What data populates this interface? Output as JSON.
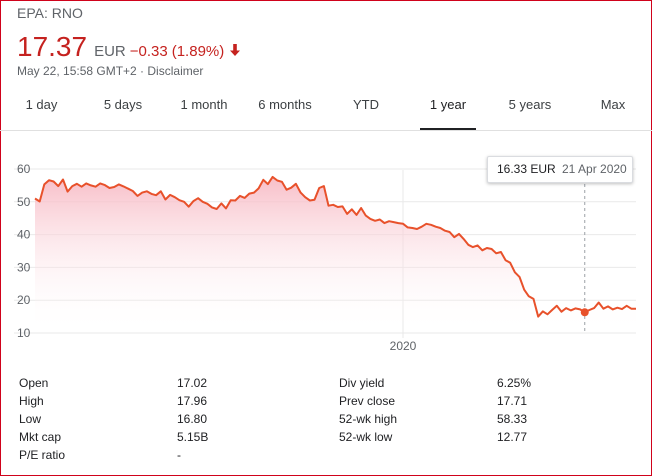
{
  "header": {
    "ticker": "EPA: RNO",
    "price": "17.37",
    "currency": "EUR",
    "change": "−0.33",
    "change_pct": "(1.89%)",
    "direction_icon": "arrow-down-icon",
    "timestamp": "May 22, 15:58 GMT+2 · ",
    "disclaimer": "Disclaimer"
  },
  "tabs": [
    "1 day",
    "5 days",
    "1 month",
    "6 months",
    "YTD",
    "1 year",
    "5 years",
    "Max"
  ],
  "active_tab": "1 year",
  "tooltip": {
    "value": "16.33 EUR",
    "date": "21 Apr 2020"
  },
  "chart_data": {
    "type": "area",
    "y_ticks": [
      "60",
      "50",
      "40",
      "30",
      "20",
      "10"
    ],
    "ylim": [
      10,
      60
    ],
    "x_tick_label": "2020",
    "grid": true,
    "colors": {
      "line": "#e8512b",
      "fill_top": "#f7b7c2",
      "fill_bottom": "#ffffff",
      "grid": "#e9e9e9"
    },
    "series": [
      {
        "values": [
          51.0,
          50.1,
          55.3,
          56.6,
          56.2,
          54.8,
          56.8,
          53.1,
          54.8,
          55.5,
          54.6,
          55.6,
          55.0,
          54.6,
          55.6,
          55.1,
          54.2,
          54.5,
          55.3,
          54.7,
          54.0,
          53.3,
          51.8,
          52.8,
          53.2,
          52.4,
          52.0,
          53.2,
          50.7,
          52.1,
          51.4,
          50.5,
          50.0,
          48.5,
          50.2,
          51.1,
          50.0,
          49.4,
          48.3,
          47.8,
          49.5,
          48.0,
          50.5,
          50.4,
          51.8,
          51.2,
          52.5,
          52.8,
          54.1,
          56.7,
          55.4,
          57.6,
          56.5,
          56.1,
          53.7,
          54.3,
          55.5,
          52.8,
          51.4,
          50.4,
          50.6,
          54.2,
          54.8,
          48.8,
          49.1,
          48.4,
          48.6,
          46.3,
          47.7,
          46.0,
          48.1,
          45.8,
          44.8,
          44.2,
          44.6,
          43.5,
          44.1,
          43.8,
          43.5,
          43.3,
          42.2,
          42.0,
          41.7,
          42.4,
          43.3,
          43.0,
          42.4,
          42.0,
          41.2,
          40.8,
          39.2,
          40.2,
          38.7,
          36.9,
          36.2,
          36.7,
          35.2,
          35.9,
          35.6,
          34.3,
          34.7,
          32.2,
          31.4,
          28.5,
          27.1,
          23.2,
          21.2,
          20.4,
          15.0,
          16.6,
          15.7,
          17.0,
          18.3,
          16.5,
          17.6,
          16.9,
          17.5,
          17.2,
          16.3,
          17.0,
          17.6,
          19.3,
          17.4,
          18.1,
          17.2,
          17.7,
          17.3,
          18.3,
          17.4,
          17.4
        ]
      }
    ],
    "highlight_point": {
      "x": "21 Apr 2020",
      "y": 16.33
    }
  },
  "stats": {
    "left": [
      {
        "label": "Open",
        "value": "17.02"
      },
      {
        "label": "High",
        "value": "17.96"
      },
      {
        "label": "Low",
        "value": "16.80"
      },
      {
        "label": "Mkt cap",
        "value": "5.15B"
      },
      {
        "label": "P/E ratio",
        "value": "-"
      }
    ],
    "right": [
      {
        "label": "Div yield",
        "value": "6.25%"
      },
      {
        "label": "Prev close",
        "value": "17.71"
      },
      {
        "label": "52-wk high",
        "value": "58.33"
      },
      {
        "label": "52-wk low",
        "value": "12.77"
      }
    ]
  }
}
